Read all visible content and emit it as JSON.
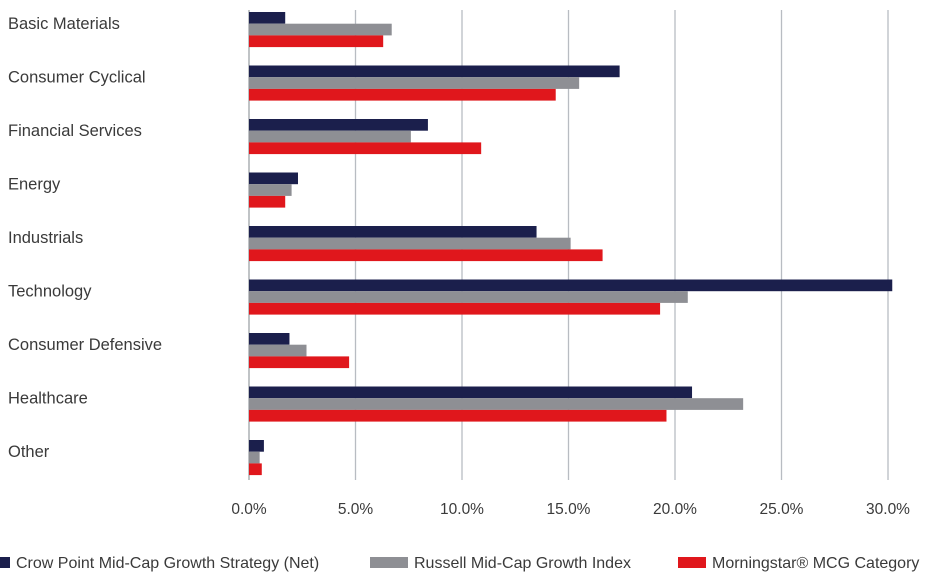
{
  "chart_data": {
    "type": "bar",
    "orientation": "horizontal",
    "categories": [
      "Basic Materials",
      "Consumer Cyclical",
      "Financial Services",
      "Energy",
      "Industrials",
      "Technology",
      "Consumer Defensive",
      "Healthcare",
      "Other"
    ],
    "series": [
      {
        "name": "Crow Point Mid-Cap Growth Strategy (Net)",
        "color": "#1b1f4c",
        "values": [
          1.7,
          17.4,
          8.4,
          2.3,
          13.5,
          30.2,
          1.9,
          20.8,
          0.7
        ]
      },
      {
        "name": "Russell Mid-Cap Growth Index",
        "color": "#8e8f94",
        "values": [
          6.7,
          15.5,
          7.6,
          2.0,
          15.1,
          20.6,
          2.7,
          23.2,
          0.5
        ]
      },
      {
        "name": "Morningstar® MCG Category",
        "color": "#e0171c",
        "values": [
          6.3,
          14.4,
          10.9,
          1.7,
          16.6,
          19.3,
          4.7,
          19.6,
          0.6
        ]
      }
    ],
    "xticks": [
      "0.0%",
      "5.0%",
      "10.0%",
      "15.0%",
      "20.0%",
      "25.0%",
      "30.0%"
    ],
    "xlim": [
      0,
      30
    ],
    "title": "",
    "xlabel": "",
    "ylabel": "",
    "grid": "vertical",
    "legend": "bottom"
  }
}
